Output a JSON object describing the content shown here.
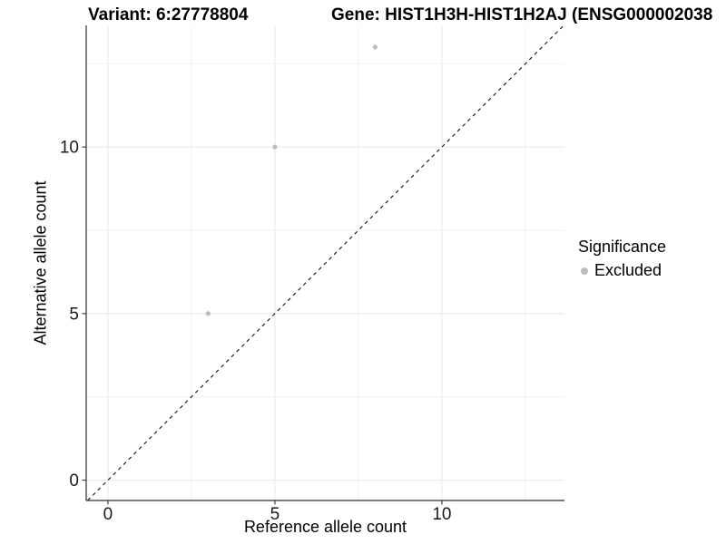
{
  "chart_data": {
    "type": "scatter",
    "title_left": "Variant: 6:27778804",
    "title_right": "Gene: HIST1H3H-HIST1H2AJ (ENSG000002038",
    "xlabel": "Reference allele count",
    "ylabel": "Alternative allele count",
    "xlim": [
      -0.65,
      13.67
    ],
    "ylim": [
      -0.61,
      13.65
    ],
    "x_ticks": [
      0,
      5,
      10
    ],
    "y_ticks": [
      0,
      5,
      10
    ],
    "x_minor_ticks": [
      2.5,
      7.5,
      12.5
    ],
    "y_minor_ticks": [
      2.5,
      7.5,
      12.5
    ],
    "grid": true,
    "identity_line": {
      "type": "y=x",
      "style": "dashed",
      "color": "#111111"
    },
    "series": [
      {
        "name": "Excluded",
        "color": "#bdbdbd",
        "points": [
          {
            "x": 3,
            "y": 5
          },
          {
            "x": 5,
            "y": 10
          },
          {
            "x": 8,
            "y": 13
          }
        ]
      }
    ],
    "legend": {
      "title": "Significance",
      "position": "right",
      "items": [
        {
          "label": "Excluded",
          "color": "#bdbdbd"
        }
      ]
    }
  },
  "colors": {
    "background": "#ffffff",
    "axis_line": "#2f2f2f",
    "tick_mark": "#2f2f2f",
    "tick_label": "#1a1a1a",
    "grid_major": "#e8e8e8",
    "grid_minor": "#f2f2f2",
    "point": "#bdbdbd"
  }
}
